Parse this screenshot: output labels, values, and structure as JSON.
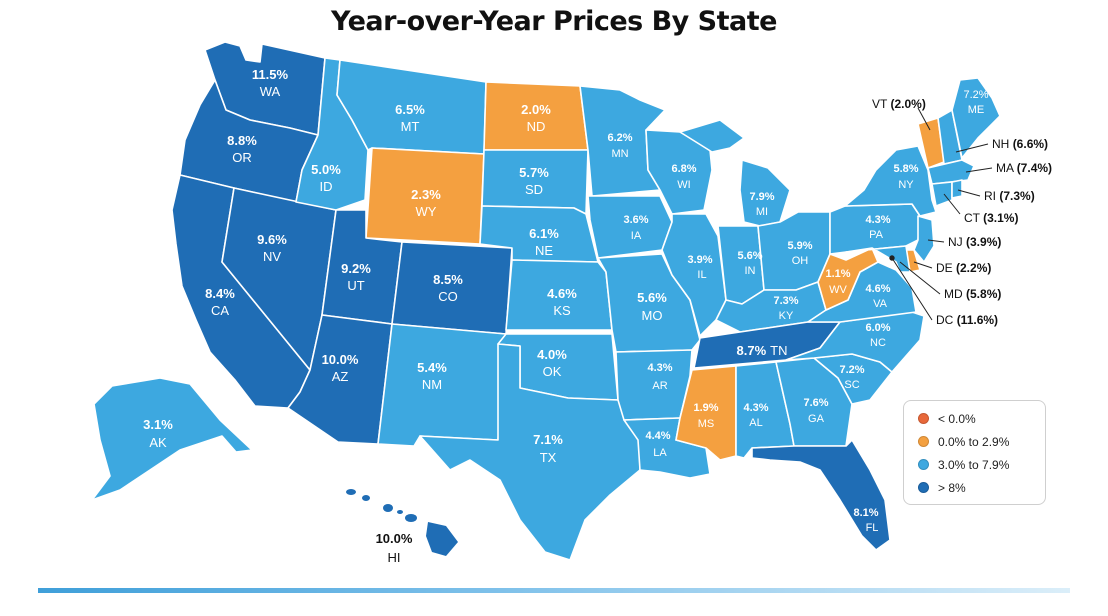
{
  "title": "Year-over-Year Prices By State",
  "colors": {
    "lt0": "#e8683a",
    "0to2_9": "#f4a040",
    "3to7_9": "#3da8e0",
    "gt8": "#1f6db5",
    "text_light_bg": "#ffffff"
  },
  "legend": [
    {
      "label": "< 0.0%",
      "color": "#e8683a"
    },
    {
      "label": "0.0% to 2.9%",
      "color": "#f4a040"
    },
    {
      "label": "3.0% to 7.9%",
      "color": "#3da8e0"
    },
    {
      "label": "> 8%",
      "color": "#1f6db5"
    }
  ],
  "states": {
    "WA": {
      "abbr": "WA",
      "value": "11.5%"
    },
    "OR": {
      "abbr": "OR",
      "value": "8.8%"
    },
    "CA": {
      "abbr": "CA",
      "value": "8.4%"
    },
    "NV": {
      "abbr": "NV",
      "value": "9.6%"
    },
    "ID": {
      "abbr": "ID",
      "value": "5.0%"
    },
    "MT": {
      "abbr": "MT",
      "value": "6.5%"
    },
    "WY": {
      "abbr": "WY",
      "value": "2.3%"
    },
    "UT": {
      "abbr": "UT",
      "value": "9.2%"
    },
    "CO": {
      "abbr": "CO",
      "value": "8.5%"
    },
    "AZ": {
      "abbr": "AZ",
      "value": "10.0%"
    },
    "NM": {
      "abbr": "NM",
      "value": "5.4%"
    },
    "ND": {
      "abbr": "ND",
      "value": "2.0%"
    },
    "SD": {
      "abbr": "SD",
      "value": "5.7%"
    },
    "NE": {
      "abbr": "NE",
      "value": "6.1%"
    },
    "KS": {
      "abbr": "KS",
      "value": "4.6%"
    },
    "OK": {
      "abbr": "OK",
      "value": "4.0%"
    },
    "TX": {
      "abbr": "TX",
      "value": "7.1%"
    },
    "MN": {
      "abbr": "MN",
      "value": "6.2%"
    },
    "IA": {
      "abbr": "IA",
      "value": "3.6%"
    },
    "MO": {
      "abbr": "MO",
      "value": "5.6%"
    },
    "AR": {
      "abbr": "AR",
      "value": "4.3%"
    },
    "LA": {
      "abbr": "LA",
      "value": "4.4%"
    },
    "WI": {
      "abbr": "WI",
      "value": "6.8%"
    },
    "IL": {
      "abbr": "IL",
      "value": "3.9%"
    },
    "MI": {
      "abbr": "MI",
      "value": "7.9%"
    },
    "IN": {
      "abbr": "IN",
      "value": "5.6%"
    },
    "OH": {
      "abbr": "OH",
      "value": "5.9%"
    },
    "KY": {
      "abbr": "KY",
      "value": "7.3%"
    },
    "TN": {
      "abbr": "TN",
      "value": "8.7%"
    },
    "MS": {
      "abbr": "MS",
      "value": "1.9%"
    },
    "AL": {
      "abbr": "AL",
      "value": "4.3%"
    },
    "GA": {
      "abbr": "GA",
      "value": "7.6%"
    },
    "FL": {
      "abbr": "FL",
      "value": "8.1%"
    },
    "SC": {
      "abbr": "SC",
      "value": "7.2%"
    },
    "NC": {
      "abbr": "NC",
      "value": "6.0%"
    },
    "VA": {
      "abbr": "VA",
      "value": "4.6%"
    },
    "WV": {
      "abbr": "WV",
      "value": "1.1%"
    },
    "PA": {
      "abbr": "PA",
      "value": "4.3%"
    },
    "NY": {
      "abbr": "NY",
      "value": "5.8%"
    },
    "ME": {
      "abbr": "ME",
      "value": "7.2%"
    },
    "AK": {
      "abbr": "AK",
      "value": "3.1%"
    },
    "HI": {
      "abbr": "HI",
      "value": "10.0%"
    }
  },
  "callouts": {
    "VT": {
      "abbr": "VT",
      "value": "(2.0%)"
    },
    "NH": {
      "abbr": "NH",
      "value": "(6.6%)"
    },
    "MA": {
      "abbr": "MA",
      "value": "(7.4%)"
    },
    "RI": {
      "abbr": "RI",
      "value": "(7.3%)"
    },
    "CT": {
      "abbr": "CT",
      "value": "(3.1%)"
    },
    "NJ": {
      "abbr": "NJ",
      "value": "(3.9%)"
    },
    "DE": {
      "abbr": "DE",
      "value": "(2.2%)"
    },
    "MD": {
      "abbr": "MD",
      "value": "(5.8%)"
    },
    "DC": {
      "abbr": "DC",
      "value": "(11.6%)"
    }
  }
}
